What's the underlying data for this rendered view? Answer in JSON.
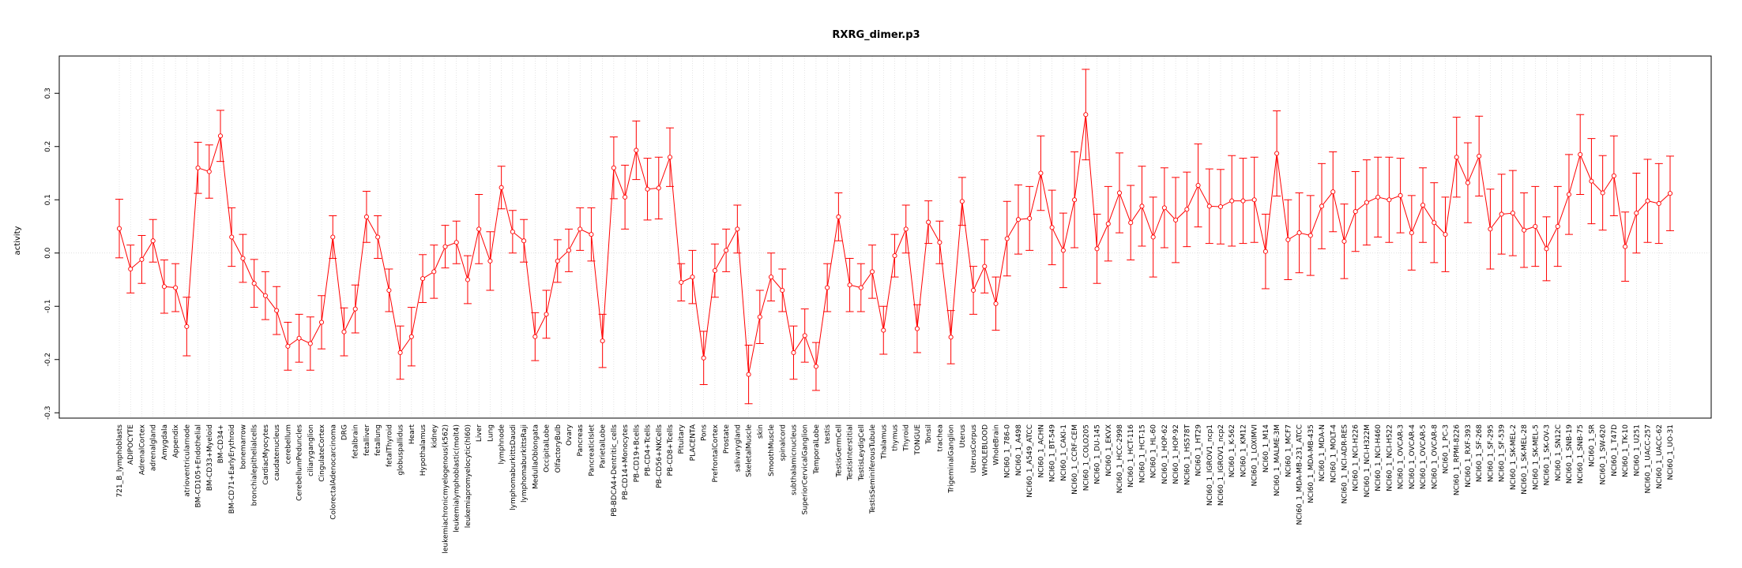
{
  "chart_data": {
    "type": "line",
    "title": "RXRG_dimer.p3",
    "xlabel": "",
    "ylabel": "activity",
    "ylim": [
      -0.31,
      0.37
    ],
    "yticks": [
      -0.3,
      -0.2,
      -0.1,
      0.0,
      0.1,
      0.2,
      0.3
    ],
    "ytick_labels": [
      "-0.3",
      "-0.2",
      "-0.1",
      "0.0",
      "0.1",
      "0.2",
      "0.3"
    ],
    "grid": true,
    "reference_line": 0,
    "line_color": "#ff0000",
    "error_color": "#ff0000",
    "grid_color": "#d3d3d3",
    "categories": [
      "721_B_lymphoblasts",
      "ADIPOCYTE",
      "AdrenalCortex",
      "adrenalgland",
      "Amygdala",
      "Appendix",
      "atrioventricularnode",
      "BM-CD105+Endothelial",
      "BM-CD33+Myeloid",
      "BM-CD34+",
      "BM-CD71+EarlyErythroid",
      "bonemarrow",
      "bronchialepithelialcells",
      "CardiacMyocytes",
      "caudatenucleus",
      "cerebellum",
      "CerebellumPeduncles",
      "ciliaryganglion",
      "CingulateCortex",
      "ColorectalAdenocarcinoma",
      "DRG",
      "fetalbrain",
      "fetalliver",
      "fetallung",
      "fetalThyroid",
      "globuspallidus",
      "Heart",
      "Hypothalamus",
      "kidney",
      "leukemiachronicmyelogenous(k562)",
      "leukemialymphoblastic(molt4)",
      "leukemiapromyelocytic(hl60)",
      "Liver",
      "Lung",
      "lymphnode",
      "lymphomaburkittsDaudi",
      "lymphomaburkittsRaji",
      "MedullaOblongata",
      "OccipitalLobe",
      "OlfactoryBulb",
      "Ovary",
      "Pancreas",
      "PancreaticIslet",
      "ParietalLobe",
      "PB-BDCA4+Dentritic_cells",
      "PB-CD14+Monocytes",
      "PB-CD19+Bcells",
      "PB-CD4+Tcells",
      "PB-CD56+NKCells",
      "PB-CD8+Tcells",
      "Pituitary",
      "PLACENTA",
      "Pons",
      "PrefrontalCortex",
      "Prostate",
      "salivarygland",
      "SkeletalMuscle",
      "skin",
      "SmoothMuscle",
      "spinalcord",
      "subthalamicnucleus",
      "SuperiorCervicalGanglion",
      "TemporalLobe",
      "testis",
      "TestisGermCell",
      "TestisInterstitial",
      "TestisLeydigCell",
      "TestisSeminiferousTubule",
      "Thalamus",
      "thymus",
      "Thyroid",
      "TONGUE",
      "Tonsil",
      "trachea",
      "TrigeminalGanglion",
      "Uterus",
      "UterusCorpus",
      "WHOLEBLOOD",
      "WholeBrain",
      "NCI60_1_786-0",
      "NCI60_1_A498",
      "NCI60_1_A549_ATCC",
      "NCI60_1_ACHN",
      "NCI60_1_BT-549",
      "NCI60_1_CAKI-1",
      "NCI60_1_CCRF-CEM",
      "NCI60_1_COLO205",
      "NCI60_1_DU-145",
      "NCI60_1_EKVX",
      "NCI60_1_HCC-2998",
      "NCI60_1_HCT-116",
      "NCI60_1_HCT-15",
      "NCI60_1_HL-60",
      "NCI60_1_HOP-62",
      "NCI60_1_HOP-92",
      "NCI60_1_HS578T",
      "NCI60_1_HT29",
      "NCI60_1_IGROV1_ncp1",
      "NCI60_1_IGROV1_ncp2",
      "NCI60_1_K-562",
      "NCI60_1_KM12",
      "NCI60_1_LOXIMVI",
      "NCI60_1_M14",
      "NCI60_1_MALME-3M",
      "NCI60_1_MCF7",
      "NCI60_1_MDA-MB-231_ATCC",
      "NCI60_1_MDA-MB-435",
      "NCI60_1_MDA-N",
      "NCI60_1_MOLT-4",
      "NCI60_1_NCI-ADR-RES",
      "NCI60_1_NCI-H226",
      "NCI60_1_NCI-H322M",
      "NCI60_1_NCI-H460",
      "NCI60_1_NCI-H522",
      "NCI60_1_OVCAR-3",
      "NCI60_1_OVCAR-4",
      "NCI60_1_OVCAR-5",
      "NCI60_1_OVCAR-8",
      "NCI60_1_PC-3",
      "NCI60_1_RPMI-8226",
      "NCI60_1_RXF-393",
      "NCI60_1_SF-268",
      "NCI60_1_SF-295",
      "NCI60_1_SF-539",
      "NCI60_1_SK-MEL-2",
      "NCI60_1_SK-MEL-28",
      "NCI60_1_SK-MEL-5",
      "NCI60_1_SK-OV-3",
      "NCI60_1_SN12C",
      "NCI60_1_SNB-19",
      "NCI60_1_SNB-75",
      "NCI60_1_SR",
      "NCI60_1_SW-620",
      "NCI60_1_T47D",
      "NCI60_1_TK-10",
      "NCI60_1_U251",
      "NCI60_1_UACC-257",
      "NCI60_1_UACC-62",
      "NCI60_1_UO-31"
    ],
    "values": [
      0.046,
      -0.03,
      -0.012,
      0.023,
      -0.063,
      -0.065,
      -0.138,
      0.16,
      0.153,
      0.22,
      0.03,
      -0.01,
      -0.057,
      -0.08,
      -0.108,
      -0.175,
      -0.16,
      -0.17,
      -0.13,
      0.03,
      -0.148,
      -0.105,
      0.068,
      0.03,
      -0.07,
      -0.187,
      -0.157,
      -0.048,
      -0.035,
      0.012,
      0.02,
      -0.05,
      0.045,
      -0.015,
      0.123,
      0.04,
      0.023,
      -0.157,
      -0.115,
      -0.015,
      0.005,
      0.045,
      0.035,
      -0.165,
      0.16,
      0.105,
      0.193,
      0.12,
      0.122,
      0.18,
      -0.055,
      -0.045,
      -0.197,
      -0.033,
      0.005,
      0.045,
      -0.228,
      -0.12,
      -0.045,
      -0.07,
      -0.187,
      -0.155,
      -0.213,
      -0.065,
      0.068,
      -0.06,
      -0.065,
      -0.035,
      -0.145,
      -0.005,
      0.045,
      -0.142,
      0.058,
      0.02,
      -0.158,
      0.097,
      -0.07,
      -0.025,
      -0.095,
      0.027,
      0.063,
      0.065,
      0.15,
      0.048,
      0.005,
      0.1,
      0.26,
      0.008,
      0.055,
      0.113,
      0.057,
      0.088,
      0.03,
      0.085,
      0.062,
      0.082,
      0.127,
      0.088,
      0.087,
      0.098,
      0.098,
      0.1,
      0.003,
      0.187,
      0.025,
      0.038,
      0.033,
      0.088,
      0.115,
      0.022,
      0.078,
      0.095,
      0.105,
      0.1,
      0.108,
      0.038,
      0.09,
      0.057,
      0.035,
      0.18,
      0.132,
      0.182,
      0.045,
      0.073,
      0.075,
      0.043,
      0.05,
      0.008,
      0.05,
      0.11,
      0.185,
      0.135,
      0.113,
      0.145,
      0.012,
      0.075,
      0.098,
      0.093,
      0.112
    ],
    "errors": [
      0.055,
      0.045,
      0.045,
      0.04,
      0.05,
      0.045,
      0.055,
      0.048,
      0.05,
      0.048,
      0.055,
      0.045,
      0.045,
      0.045,
      0.045,
      0.045,
      0.045,
      0.05,
      0.05,
      0.04,
      0.045,
      0.045,
      0.048,
      0.04,
      0.04,
      0.05,
      0.055,
      0.045,
      0.05,
      0.04,
      0.04,
      0.045,
      0.065,
      0.055,
      0.04,
      0.04,
      0.04,
      0.045,
      0.045,
      0.04,
      0.04,
      0.04,
      0.05,
      0.05,
      0.058,
      0.06,
      0.055,
      0.058,
      0.058,
      0.055,
      0.035,
      0.05,
      0.05,
      0.05,
      0.04,
      0.045,
      0.055,
      0.05,
      0.045,
      0.04,
      0.05,
      0.05,
      0.045,
      0.045,
      0.045,
      0.05,
      0.045,
      0.05,
      0.045,
      0.04,
      0.045,
      0.045,
      0.04,
      0.04,
      0.05,
      0.045,
      0.045,
      0.05,
      0.05,
      0.07,
      0.065,
      0.06,
      0.07,
      0.07,
      0.07,
      0.09,
      0.085,
      0.065,
      0.07,
      0.075,
      0.07,
      0.075,
      0.075,
      0.075,
      0.08,
      0.07,
      0.078,
      0.07,
      0.07,
      0.085,
      0.08,
      0.08,
      0.07,
      0.08,
      0.075,
      0.075,
      0.075,
      0.08,
      0.075,
      0.07,
      0.075,
      0.08,
      0.075,
      0.08,
      0.07,
      0.07,
      0.07,
      0.075,
      0.07,
      0.075,
      0.075,
      0.075,
      0.075,
      0.075,
      0.08,
      0.07,
      0.075,
      0.06,
      0.075,
      0.075,
      0.075,
      0.08,
      0.07,
      0.075,
      0.065,
      0.075,
      0.078,
      0.075,
      0.07
    ]
  }
}
